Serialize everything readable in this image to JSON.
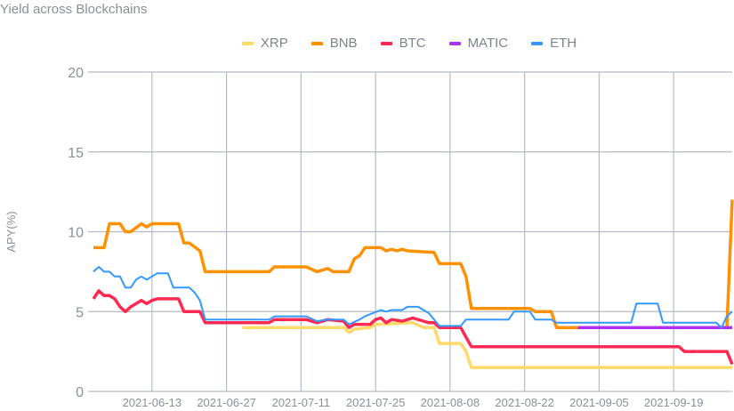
{
  "chart_data": {
    "type": "line",
    "title": "Yield across Blockchains",
    "xlabel": "",
    "ylabel": "APY(%)",
    "ylim": [
      0,
      20
    ],
    "xlim": [
      "2021-06-02",
      "2021-09-30"
    ],
    "yticks": [
      0,
      5,
      10,
      15,
      20
    ],
    "xticks": [
      "2021-06-13",
      "2021-06-27",
      "2021-07-11",
      "2021-07-25",
      "2021-08-08",
      "2021-08-22",
      "2021-09-05",
      "2021-09-19"
    ],
    "grid": true,
    "legend_position": "top",
    "series": [
      {
        "name": "XRP",
        "color": "#FFDA6B",
        "points": [
          [
            "2021-06-30",
            4.0
          ],
          [
            "2021-07-19",
            4.0
          ],
          [
            "2021-07-20",
            3.7
          ],
          [
            "2021-07-21",
            3.9
          ],
          [
            "2021-07-24",
            4.0
          ],
          [
            "2021-07-25",
            4.2
          ],
          [
            "2021-08-01",
            4.3
          ],
          [
            "2021-08-03",
            4.0
          ],
          [
            "2021-08-05",
            4.0
          ],
          [
            "2021-08-06",
            3.0
          ],
          [
            "2021-08-10",
            3.0
          ],
          [
            "2021-08-11",
            2.5
          ],
          [
            "2021-08-12",
            1.5
          ],
          [
            "2021-09-30",
            1.5
          ]
        ]
      },
      {
        "name": "BNB",
        "color": "#FF9100",
        "points": [
          [
            "2021-06-02",
            9.0
          ],
          [
            "2021-06-04",
            9.0
          ],
          [
            "2021-06-05",
            10.5
          ],
          [
            "2021-06-07",
            10.5
          ],
          [
            "2021-06-08",
            10.0
          ],
          [
            "2021-06-09",
            10.0
          ],
          [
            "2021-06-11",
            10.5
          ],
          [
            "2021-06-12",
            10.3
          ],
          [
            "2021-06-13",
            10.5
          ],
          [
            "2021-06-18",
            10.5
          ],
          [
            "2021-06-19",
            9.3
          ],
          [
            "2021-06-20",
            9.3
          ],
          [
            "2021-06-22",
            8.8
          ],
          [
            "2021-06-23",
            7.5
          ],
          [
            "2021-07-05",
            7.5
          ],
          [
            "2021-07-06",
            7.8
          ],
          [
            "2021-07-12",
            7.8
          ],
          [
            "2021-07-14",
            7.5
          ],
          [
            "2021-07-16",
            7.7
          ],
          [
            "2021-07-17",
            7.5
          ],
          [
            "2021-07-20",
            7.5
          ],
          [
            "2021-07-21",
            8.3
          ],
          [
            "2021-07-22",
            8.5
          ],
          [
            "2021-07-23",
            9.0
          ],
          [
            "2021-07-26",
            9.0
          ],
          [
            "2021-07-27",
            8.8
          ],
          [
            "2021-07-28",
            8.9
          ],
          [
            "2021-07-29",
            8.8
          ],
          [
            "2021-07-30",
            8.9
          ],
          [
            "2021-07-31",
            8.8
          ],
          [
            "2021-08-05",
            8.7
          ],
          [
            "2021-08-06",
            8.0
          ],
          [
            "2021-08-10",
            8.0
          ],
          [
            "2021-08-11",
            7.2
          ],
          [
            "2021-08-12",
            5.2
          ],
          [
            "2021-08-23",
            5.2
          ],
          [
            "2021-08-24",
            5.0
          ],
          [
            "2021-08-27",
            5.0
          ],
          [
            "2021-08-28",
            4.0
          ],
          [
            "2021-09-29",
            4.0
          ],
          [
            "2021-09-30",
            12.0
          ]
        ]
      },
      {
        "name": "BTC",
        "color": "#FF2A52",
        "points": [
          [
            "2021-06-02",
            5.8
          ],
          [
            "2021-06-03",
            6.3
          ],
          [
            "2021-06-04",
            6.0
          ],
          [
            "2021-06-05",
            6.0
          ],
          [
            "2021-06-06",
            5.8
          ],
          [
            "2021-06-07",
            5.3
          ],
          [
            "2021-06-08",
            5.0
          ],
          [
            "2021-06-09",
            5.3
          ],
          [
            "2021-06-11",
            5.7
          ],
          [
            "2021-06-12",
            5.5
          ],
          [
            "2021-06-13",
            5.7
          ],
          [
            "2021-06-14",
            5.8
          ],
          [
            "2021-06-18",
            5.8
          ],
          [
            "2021-06-19",
            5.0
          ],
          [
            "2021-06-22",
            5.0
          ],
          [
            "2021-06-23",
            4.3
          ],
          [
            "2021-07-05",
            4.3
          ],
          [
            "2021-07-06",
            4.5
          ],
          [
            "2021-07-12",
            4.5
          ],
          [
            "2021-07-14",
            4.3
          ],
          [
            "2021-07-16",
            4.5
          ],
          [
            "2021-07-19",
            4.4
          ],
          [
            "2021-07-20",
            4.0
          ],
          [
            "2021-07-21",
            4.2
          ],
          [
            "2021-07-24",
            4.2
          ],
          [
            "2021-07-25",
            4.5
          ],
          [
            "2021-07-26",
            4.6
          ],
          [
            "2021-07-27",
            4.3
          ],
          [
            "2021-07-28",
            4.5
          ],
          [
            "2021-07-30",
            4.4
          ],
          [
            "2021-08-01",
            4.6
          ],
          [
            "2021-08-03",
            4.4
          ],
          [
            "2021-08-04",
            4.3
          ],
          [
            "2021-08-05",
            4.3
          ],
          [
            "2021-08-06",
            4.0
          ],
          [
            "2021-08-10",
            4.0
          ],
          [
            "2021-08-11",
            3.4
          ],
          [
            "2021-08-12",
            2.8
          ],
          [
            "2021-09-20",
            2.8
          ],
          [
            "2021-09-21",
            2.5
          ],
          [
            "2021-09-29",
            2.5
          ],
          [
            "2021-09-30",
            1.7
          ]
        ]
      },
      {
        "name": "MATIC",
        "color": "#B030F0",
        "points": [
          [
            "2021-09-01",
            4.0
          ],
          [
            "2021-09-30",
            4.0
          ]
        ]
      },
      {
        "name": "ETH",
        "color": "#3399FF",
        "points": [
          [
            "2021-06-02",
            7.5
          ],
          [
            "2021-06-03",
            7.8
          ],
          [
            "2021-06-04",
            7.5
          ],
          [
            "2021-06-05",
            7.5
          ],
          [
            "2021-06-06",
            7.2
          ],
          [
            "2021-06-07",
            7.2
          ],
          [
            "2021-06-08",
            6.5
          ],
          [
            "2021-06-09",
            6.5
          ],
          [
            "2021-06-10",
            7.0
          ],
          [
            "2021-06-11",
            7.2
          ],
          [
            "2021-06-12",
            7.0
          ],
          [
            "2021-06-14",
            7.4
          ],
          [
            "2021-06-16",
            7.4
          ],
          [
            "2021-06-17",
            6.5
          ],
          [
            "2021-06-20",
            6.5
          ],
          [
            "2021-06-21",
            6.2
          ],
          [
            "2021-06-22",
            5.7
          ],
          [
            "2021-06-23",
            4.5
          ],
          [
            "2021-07-05",
            4.5
          ],
          [
            "2021-07-06",
            4.7
          ],
          [
            "2021-07-12",
            4.7
          ],
          [
            "2021-07-14",
            4.4
          ],
          [
            "2021-07-16",
            4.5
          ],
          [
            "2021-07-19",
            4.5
          ],
          [
            "2021-07-20",
            4.2
          ],
          [
            "2021-07-22",
            4.5
          ],
          [
            "2021-07-23",
            4.7
          ],
          [
            "2021-07-26",
            5.1
          ],
          [
            "2021-07-27",
            5.0
          ],
          [
            "2021-07-28",
            5.1
          ],
          [
            "2021-07-30",
            5.1
          ],
          [
            "2021-07-31",
            5.3
          ],
          [
            "2021-08-02",
            5.3
          ],
          [
            "2021-08-03",
            5.1
          ],
          [
            "2021-08-04",
            4.9
          ],
          [
            "2021-08-06",
            4.1
          ],
          [
            "2021-08-10",
            4.1
          ],
          [
            "2021-08-11",
            4.5
          ],
          [
            "2021-08-19",
            4.5
          ],
          [
            "2021-08-20",
            5.0
          ],
          [
            "2021-08-23",
            5.0
          ],
          [
            "2021-08-24",
            4.5
          ],
          [
            "2021-08-27",
            4.5
          ],
          [
            "2021-08-28",
            4.3
          ],
          [
            "2021-09-11",
            4.3
          ],
          [
            "2021-09-12",
            5.5
          ],
          [
            "2021-09-16",
            5.5
          ],
          [
            "2021-09-17",
            4.3
          ],
          [
            "2021-09-27",
            4.3
          ],
          [
            "2021-09-28",
            4.0
          ],
          [
            "2021-09-29",
            4.7
          ],
          [
            "2021-09-30",
            5.0
          ]
        ]
      }
    ]
  }
}
